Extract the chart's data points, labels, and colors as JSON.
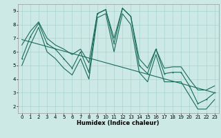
{
  "xlabel": "Humidex (Indice chaleur)",
  "xlim": [
    -0.5,
    23.5
  ],
  "ylim": [
    1.5,
    9.5
  ],
  "xticks": [
    0,
    1,
    2,
    3,
    4,
    5,
    6,
    7,
    8,
    9,
    10,
    11,
    12,
    13,
    14,
    15,
    16,
    17,
    18,
    19,
    20,
    21,
    22,
    23
  ],
  "yticks": [
    2,
    3,
    4,
    5,
    6,
    7,
    8,
    9
  ],
  "bg_color": "#cce9e5",
  "grid_color": "#aad4cf",
  "line_color": "#1a6b5a",
  "main_data_x": [
    0,
    1,
    2,
    3,
    4,
    5,
    6,
    7,
    8,
    9,
    10,
    11,
    12,
    13,
    14,
    15,
    16,
    17,
    18,
    19,
    20,
    21,
    22,
    23
  ],
  "main_data_y": [
    5.5,
    7.1,
    8.1,
    6.6,
    6.2,
    5.5,
    4.8,
    6.0,
    4.5,
    8.8,
    9.1,
    6.6,
    9.2,
    8.6,
    5.0,
    4.4,
    6.2,
    4.4,
    4.5,
    4.5,
    3.5,
    2.2,
    2.5,
    3.0
  ],
  "trend_data_x": [
    0,
    23
  ],
  "trend_data_y": [
    6.9,
    3.0
  ],
  "envelope_upper_x": [
    0,
    1,
    2,
    3,
    4,
    5,
    6,
    7,
    8,
    9,
    10,
    11,
    12,
    13,
    14,
    15,
    16,
    17,
    18,
    19,
    20,
    21,
    22,
    23
  ],
  "envelope_upper_y": [
    6.5,
    7.5,
    8.2,
    7.0,
    6.5,
    6.2,
    5.8,
    6.2,
    5.2,
    8.8,
    9.1,
    7.0,
    9.2,
    8.6,
    5.5,
    4.8,
    6.2,
    4.8,
    4.9,
    4.9,
    4.0,
    3.2,
    3.2,
    3.5
  ],
  "envelope_lower_x": [
    0,
    1,
    2,
    3,
    4,
    5,
    6,
    7,
    8,
    9,
    10,
    11,
    12,
    13,
    14,
    15,
    16,
    17,
    18,
    19,
    20,
    21,
    22,
    23
  ],
  "envelope_lower_y": [
    5.0,
    6.5,
    7.8,
    6.0,
    5.5,
    4.8,
    4.3,
    5.5,
    4.0,
    8.5,
    8.8,
    6.0,
    8.8,
    8.0,
    4.5,
    3.8,
    5.8,
    3.8,
    3.8,
    3.8,
    2.8,
    1.8,
    1.8,
    2.5
  ],
  "lw": 0.8,
  "ms": 2.0,
  "tick_fontsize": 5.0,
  "xlabel_fontsize": 6.0
}
